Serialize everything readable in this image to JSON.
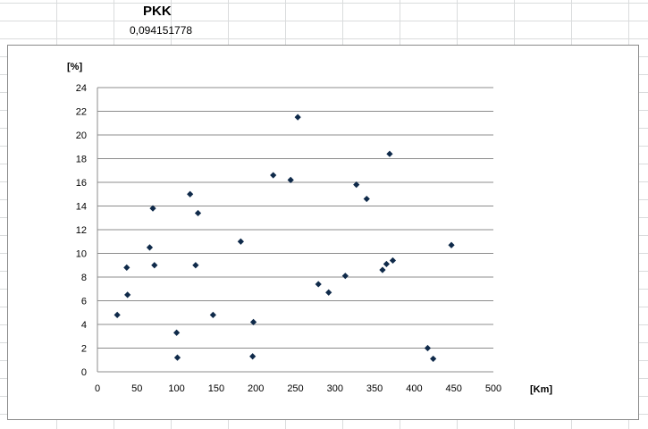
{
  "sheet": {
    "title": "PKK",
    "value": "0,094151778"
  },
  "chart_data": {
    "type": "scatter",
    "xlabel": "[Km]",
    "ylabel": "[%]",
    "xlim": [
      0,
      500
    ],
    "ylim": [
      0,
      24
    ],
    "x_ticks": [
      "0",
      "50",
      "100",
      "150",
      "200",
      "250",
      "300",
      "350",
      "400",
      "450",
      "500"
    ],
    "y_ticks": [
      "0",
      "2",
      "4",
      "6",
      "8",
      "10",
      "12",
      "14",
      "16",
      "18",
      "20",
      "22",
      "24"
    ],
    "grid": "horizontal",
    "marker": "diamond",
    "marker_color": "#0f2a4a",
    "series": [
      {
        "points": [
          [
            25,
            4.8
          ],
          [
            37,
            8.8
          ],
          [
            38,
            6.5
          ],
          [
            66,
            10.5
          ],
          [
            70,
            13.8
          ],
          [
            72,
            9.0
          ],
          [
            100,
            3.3
          ],
          [
            101,
            1.2
          ],
          [
            117,
            15.0
          ],
          [
            124,
            9.0
          ],
          [
            127,
            13.4
          ],
          [
            146,
            4.8
          ],
          [
            181,
            11.0
          ],
          [
            196,
            1.3
          ],
          [
            197,
            4.2
          ],
          [
            222,
            16.6
          ],
          [
            244,
            16.2
          ],
          [
            253,
            21.5
          ],
          [
            279,
            7.4
          ],
          [
            292,
            6.7
          ],
          [
            313,
            8.1
          ],
          [
            327,
            15.8
          ],
          [
            340,
            14.6
          ],
          [
            360,
            8.6
          ],
          [
            365,
            9.1
          ],
          [
            369,
            18.4
          ],
          [
            373,
            9.4
          ],
          [
            417,
            2.0
          ],
          [
            424,
            1.1
          ],
          [
            447,
            10.7
          ]
        ]
      }
    ]
  }
}
